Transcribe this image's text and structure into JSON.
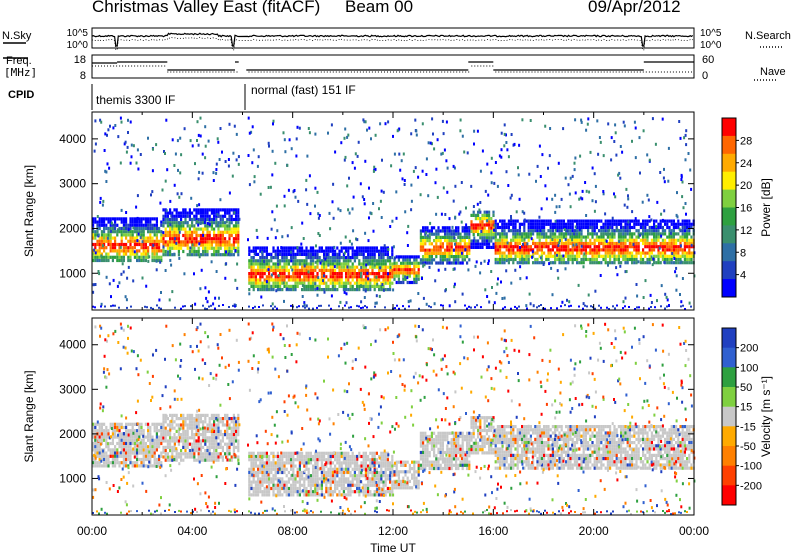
{
  "header": {
    "title": "Christmas Valley East (fitACF)",
    "beam": "Beam 00",
    "date": "09/Apr/2012"
  },
  "noise_panel": {
    "left_label": "N.Sky",
    "right_label": "N.Search",
    "left_ticks": [
      "10^5",
      "10^0"
    ],
    "right_ticks": [
      "10^5",
      "10^0"
    ]
  },
  "freq_panel": {
    "left_label_1": "Freq.",
    "left_label_2": "[MHz]",
    "left_ticks": [
      "18",
      "8"
    ],
    "right_ticks": [
      "60",
      "0"
    ],
    "right_label": "Nave"
  },
  "cpid": {
    "label": "CPID",
    "modes": [
      {
        "name": "themis 3300 IF",
        "start_hour": 0,
        "end_hour": 6.1
      },
      {
        "name": "normal (fast) 151 IF",
        "start_hour": 6.1,
        "end_hour": 24
      }
    ]
  },
  "chart_data": [
    {
      "type": "heatmap",
      "name": "power",
      "xlabel": "",
      "ylabel": "Slant Range [km]",
      "xlim": [
        0,
        24
      ],
      "ylim": [
        180,
        4600
      ],
      "yticks": [
        1000,
        2000,
        3000,
        4000
      ],
      "colorbar": {
        "label": "Power [dB]",
        "ticks": [
          "28",
          "24",
          "20",
          "16",
          "12",
          "8",
          "4"
        ],
        "colors": [
          "#ff0000",
          "#ff6600",
          "#ffaa00",
          "#ffee00",
          "#7fd040",
          "#2ea040",
          "#3a8f6e",
          "#2e6fa5",
          "#2040c0",
          "#0000ff"
        ]
      },
      "regions": [
        {
          "t0": 0.0,
          "t1": 2.8,
          "r0": 1250,
          "r1": 2250,
          "peak": 1650
        },
        {
          "t0": 2.8,
          "t1": 5.8,
          "r0": 1400,
          "r1": 2450,
          "peak": 1800
        },
        {
          "t0": 6.1,
          "t1": 12.0,
          "r0": 650,
          "r1": 1600,
          "peak": 1000
        },
        {
          "t0": 12.0,
          "t1": 13.0,
          "r0": 800,
          "r1": 1400,
          "peak": 1100
        },
        {
          "t0": 13.0,
          "t1": 15.0,
          "r0": 1250,
          "r1": 2050,
          "peak": 1600
        },
        {
          "t0": 15.0,
          "t1": 16.0,
          "r0": 1600,
          "r1": 2400,
          "peak": 2100
        },
        {
          "t0": 16.0,
          "t1": 24.0,
          "r0": 1250,
          "r1": 2200,
          "peak": 1600
        }
      ]
    },
    {
      "type": "heatmap",
      "name": "velocity",
      "xlabel": "Time UT",
      "ylabel": "Slant Range [km]",
      "xlim": [
        0,
        24
      ],
      "ylim": [
        180,
        4600
      ],
      "yticks": [
        1000,
        2000,
        3000,
        4000
      ],
      "xticks": [
        "00:00",
        "04:00",
        "08:00",
        "12:00",
        "16:00",
        "20:00",
        "00:00"
      ],
      "colorbar": {
        "label": "Velocity [m s⁻¹]",
        "ticks": [
          "200",
          "100",
          "50",
          "15",
          "-15",
          "-50",
          "-100",
          "-200"
        ],
        "colors": [
          "#2040c0",
          "#3060d0",
          "#2ea040",
          "#7fd040",
          "#c8c8c8",
          "#ffaa00",
          "#ff8000",
          "#ff4000",
          "#ff0000"
        ]
      }
    }
  ]
}
